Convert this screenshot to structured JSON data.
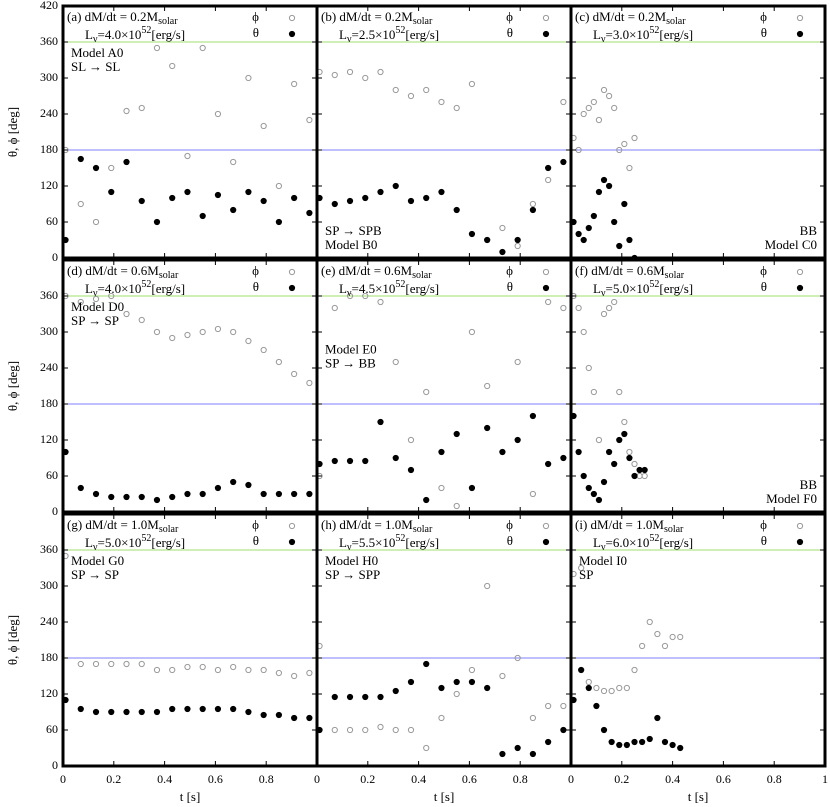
{
  "chart_data": [
    {
      "type": "scatter",
      "title": [
        "(a) dM/dt = 0.2M",
        "solar"
      ],
      "subtitle": [
        "L",
        "ν",
        "=4.0×10",
        "52",
        "[erg/s]"
      ],
      "annotations": [
        "Model A0",
        "SL → SL"
      ],
      "annotation_corner": "top-left",
      "ylabel": "θ, ϕ [deg]",
      "xlim": [
        0,
        1
      ],
      "ylim": [
        0,
        420
      ],
      "xticks": [
        0,
        0.2,
        0.4,
        0.6,
        0.8
      ],
      "yticks": [
        0,
        60,
        120,
        180,
        240,
        300,
        360,
        420
      ],
      "hlines": [
        {
          "value": 180,
          "color": "#7f7fff"
        },
        {
          "value": 360,
          "color": "#9fdf6f"
        }
      ],
      "x": [
        0.01,
        0.07,
        0.13,
        0.19,
        0.25,
        0.31,
        0.37,
        0.43,
        0.49,
        0.55,
        0.61,
        0.67,
        0.73,
        0.79,
        0.85,
        0.91,
        0.97
      ],
      "series": [
        {
          "name": "ϕ",
          "color": "#999999",
          "marker": "open",
          "values": [
            180,
            90,
            60,
            150,
            245,
            250,
            350,
            320,
            170,
            350,
            240,
            160,
            300,
            220,
            120,
            290,
            230
          ]
        },
        {
          "name": "θ",
          "color": "#000000",
          "marker": "filled",
          "values": [
            30,
            165,
            150,
            110,
            160,
            95,
            60,
            100,
            110,
            70,
            105,
            80,
            110,
            95,
            60,
            100,
            75
          ]
        }
      ]
    },
    {
      "type": "scatter",
      "title": [
        "(b) dM/dt = 0.2M",
        "solar"
      ],
      "subtitle": [
        "L",
        "ν",
        "=2.5×10",
        "52",
        "[erg/s]"
      ],
      "annotations": [
        "SP → SPB",
        "Model B0"
      ],
      "annotation_corner": "bottom-left",
      "xlim": [
        0,
        1
      ],
      "ylim": [
        0,
        420
      ],
      "xticks": [
        0,
        0.2,
        0.4,
        0.6,
        0.8
      ],
      "yticks": [
        0,
        60,
        120,
        180,
        240,
        300,
        360,
        420
      ],
      "hlines": [
        {
          "value": 180,
          "color": "#7f7fff"
        },
        {
          "value": 360,
          "color": "#9fdf6f"
        }
      ],
      "x": [
        0.01,
        0.07,
        0.13,
        0.19,
        0.25,
        0.31,
        0.37,
        0.43,
        0.49,
        0.55,
        0.61,
        0.67,
        0.73,
        0.79,
        0.85,
        0.91,
        0.97
      ],
      "series": [
        {
          "name": "ϕ",
          "color": "#999999",
          "marker": "open",
          "values": [
            310,
            305,
            310,
            300,
            310,
            280,
            270,
            280,
            260,
            250,
            290,
            30,
            50,
            20,
            90,
            130,
            260
          ]
        },
        {
          "name": "θ",
          "color": "#000000",
          "marker": "filled",
          "values": [
            100,
            90,
            95,
            100,
            110,
            120,
            95,
            100,
            110,
            80,
            40,
            30,
            10,
            30,
            80,
            150,
            160
          ]
        }
      ]
    },
    {
      "type": "scatter",
      "title": [
        "(c) dM/dt = 0.2M",
        "solar"
      ],
      "subtitle": [
        "L",
        "ν",
        "=3.0×10",
        "52",
        "[erg/s]"
      ],
      "annotations": [
        "BB",
        "Model C0"
      ],
      "annotation_corner": "bottom-right",
      "xlim": [
        0,
        1
      ],
      "ylim": [
        0,
        420
      ],
      "xticks": [
        0,
        0.2,
        0.4,
        0.6,
        0.8,
        1
      ],
      "yticks": [
        0,
        60,
        120,
        180,
        240,
        300,
        360,
        420
      ],
      "hlines": [
        {
          "value": 180,
          "color": "#7f7fff"
        },
        {
          "value": 360,
          "color": "#9fdf6f"
        }
      ],
      "x": [
        0.01,
        0.03,
        0.05,
        0.07,
        0.09,
        0.11,
        0.13,
        0.15,
        0.17,
        0.19,
        0.21,
        0.23,
        0.25
      ],
      "series": [
        {
          "name": "ϕ",
          "color": "#999999",
          "marker": "open",
          "values": [
            200,
            180,
            240,
            250,
            260,
            230,
            280,
            270,
            250,
            180,
            190,
            150,
            200
          ]
        },
        {
          "name": "θ",
          "color": "#000000",
          "marker": "filled",
          "values": [
            60,
            40,
            30,
            50,
            70,
            110,
            130,
            120,
            60,
            20,
            90,
            30,
            0
          ]
        }
      ]
    },
    {
      "type": "scatter",
      "title": [
        "(d) dM/dt = 0.6M",
        "solar"
      ],
      "subtitle": [
        "L",
        "ν",
        "=4.0×10",
        "52",
        "[erg/s]"
      ],
      "annotations": [
        "Model D0",
        "SP → SP"
      ],
      "annotation_corner": "top-left",
      "ylabel": "θ, ϕ [deg]",
      "xlim": [
        0,
        1
      ],
      "ylim": [
        0,
        420
      ],
      "xticks": [
        0,
        0.2,
        0.4,
        0.6,
        0.8
      ],
      "yticks": [
        0,
        60,
        120,
        180,
        240,
        300,
        360
      ],
      "hlines": [
        {
          "value": 180,
          "color": "#7f7fff"
        },
        {
          "value": 360,
          "color": "#9fdf6f"
        }
      ],
      "x": [
        0.01,
        0.07,
        0.13,
        0.19,
        0.25,
        0.31,
        0.37,
        0.43,
        0.49,
        0.55,
        0.61,
        0.67,
        0.73,
        0.79,
        0.85,
        0.91,
        0.97
      ],
      "series": [
        {
          "name": "ϕ",
          "color": "#999999",
          "marker": "open",
          "values": [
            360,
            350,
            355,
            360,
            330,
            320,
            300,
            290,
            295,
            300,
            305,
            300,
            285,
            270,
            250,
            230,
            215
          ]
        },
        {
          "name": "θ",
          "color": "#000000",
          "marker": "filled",
          "values": [
            100,
            40,
            30,
            25,
            25,
            25,
            20,
            25,
            30,
            30,
            40,
            50,
            45,
            30,
            30,
            30,
            30
          ]
        }
      ]
    },
    {
      "type": "scatter",
      "title": [
        "(e) dM/dt = 0.6M",
        "solar"
      ],
      "subtitle": [
        "L",
        "ν",
        "=4.5×10",
        "52",
        "[erg/s]"
      ],
      "annotations": [
        "Model E0",
        "SP → BB"
      ],
      "annotation_corner": "center-left",
      "xlim": [
        0,
        1
      ],
      "ylim": [
        0,
        420
      ],
      "xticks": [
        0,
        0.2,
        0.4,
        0.6,
        0.8
      ],
      "yticks": [
        0,
        60,
        120,
        180,
        240,
        300,
        360
      ],
      "hlines": [
        {
          "value": 180,
          "color": "#7f7fff"
        },
        {
          "value": 360,
          "color": "#9fdf6f"
        }
      ],
      "x": [
        0.01,
        0.07,
        0.13,
        0.19,
        0.25,
        0.31,
        0.37,
        0.43,
        0.49,
        0.55,
        0.61,
        0.67,
        0.73,
        0.79,
        0.85,
        0.91,
        0.97
      ],
      "series": [
        {
          "name": "ϕ",
          "color": "#999999",
          "marker": "open",
          "values": [
            60,
            340,
            360,
            360,
            350,
            250,
            120,
            200,
            40,
            10,
            300,
            210,
            100,
            250,
            30,
            350,
            340
          ]
        },
        {
          "name": "θ",
          "color": "#000000",
          "marker": "filled",
          "values": [
            80,
            85,
            85,
            85,
            150,
            90,
            70,
            20,
            100,
            130,
            40,
            140,
            100,
            120,
            160,
            80,
            90
          ]
        }
      ]
    },
    {
      "type": "scatter",
      "title": [
        "(f) dM/dt = 0.6M",
        "solar"
      ],
      "subtitle": [
        "L",
        "ν",
        "=5.0×10",
        "52",
        "[erg/s]"
      ],
      "annotations": [
        "BB",
        "Model F0"
      ],
      "annotation_corner": "bottom-right",
      "xlim": [
        0,
        1
      ],
      "ylim": [
        0,
        420
      ],
      "xticks": [
        0,
        0.2,
        0.4,
        0.6,
        0.8,
        1
      ],
      "yticks": [
        0,
        60,
        120,
        180,
        240,
        300,
        360
      ],
      "hlines": [
        {
          "value": 180,
          "color": "#7f7fff"
        },
        {
          "value": 360,
          "color": "#9fdf6f"
        }
      ],
      "x": [
        0.01,
        0.03,
        0.05,
        0.07,
        0.09,
        0.11,
        0.13,
        0.15,
        0.17,
        0.19,
        0.21,
        0.23,
        0.25,
        0.27,
        0.29
      ],
      "series": [
        {
          "name": "ϕ",
          "color": "#999999",
          "marker": "open",
          "values": [
            360,
            340,
            300,
            240,
            200,
            120,
            330,
            340,
            350,
            200,
            150,
            100,
            80,
            60,
            60
          ]
        },
        {
          "name": "θ",
          "color": "#000000",
          "marker": "filled",
          "values": [
            160,
            100,
            60,
            40,
            30,
            20,
            50,
            100,
            80,
            120,
            130,
            90,
            60,
            70,
            70
          ]
        }
      ]
    },
    {
      "type": "scatter",
      "title": [
        "(g) dM/dt = 1.0M",
        "solar"
      ],
      "subtitle": [
        "L",
        "ν",
        "=5.0×10",
        "52",
        "[erg/s]"
      ],
      "annotations": [
        "Model G0",
        "SP → SP"
      ],
      "annotation_corner": "top-left",
      "ylabel": "θ, ϕ [deg]",
      "xlabel": "t [s]",
      "xlim": [
        0,
        1
      ],
      "ylim": [
        0,
        420
      ],
      "xticks": [
        0,
        0.2,
        0.4,
        0.6,
        0.8
      ],
      "yticks": [
        0,
        60,
        120,
        180,
        240,
        300,
        360
      ],
      "hlines": [
        {
          "value": 180,
          "color": "#7f7fff"
        },
        {
          "value": 360,
          "color": "#9fdf6f"
        }
      ],
      "x": [
        0.01,
        0.07,
        0.13,
        0.19,
        0.25,
        0.31,
        0.37,
        0.43,
        0.49,
        0.55,
        0.61,
        0.67,
        0.73,
        0.79,
        0.85,
        0.91,
        0.97
      ],
      "series": [
        {
          "name": "ϕ",
          "color": "#999999",
          "marker": "open",
          "values": [
            350,
            170,
            170,
            170,
            170,
            170,
            160,
            160,
            165,
            165,
            160,
            165,
            160,
            160,
            155,
            150,
            155
          ]
        },
        {
          "name": "θ",
          "color": "#000000",
          "marker": "filled",
          "values": [
            110,
            95,
            90,
            90,
            90,
            90,
            90,
            95,
            95,
            95,
            95,
            95,
            90,
            85,
            85,
            80,
            80
          ]
        }
      ]
    },
    {
      "type": "scatter",
      "title": [
        "(h) dM/dt = 1.0M",
        "solar"
      ],
      "subtitle": [
        "L",
        "ν",
        "=5.5×10",
        "52",
        "[erg/s]"
      ],
      "annotations": [
        "Model H0",
        "SP → SPP"
      ],
      "annotation_corner": "top-left",
      "xlabel": "t [s]",
      "xlim": [
        0,
        1
      ],
      "ylim": [
        0,
        420
      ],
      "xticks": [
        0,
        0.2,
        0.4,
        0.6,
        0.8
      ],
      "yticks": [
        0,
        60,
        120,
        180,
        240,
        300,
        360
      ],
      "hlines": [
        {
          "value": 180,
          "color": "#7f7fff"
        },
        {
          "value": 360,
          "color": "#9fdf6f"
        }
      ],
      "x": [
        0.01,
        0.07,
        0.13,
        0.19,
        0.25,
        0.31,
        0.37,
        0.43,
        0.49,
        0.55,
        0.61,
        0.67,
        0.73,
        0.79,
        0.85,
        0.91,
        0.97
      ],
      "series": [
        {
          "name": "ϕ",
          "color": "#999999",
          "marker": "open",
          "values": [
            200,
            60,
            60,
            60,
            65,
            60,
            60,
            30,
            80,
            120,
            160,
            300,
            150,
            180,
            80,
            100,
            100
          ]
        },
        {
          "name": "θ",
          "color": "#000000",
          "marker": "filled",
          "values": [
            60,
            115,
            115,
            115,
            115,
            125,
            140,
            170,
            130,
            140,
            140,
            130,
            20,
            30,
            20,
            40,
            60
          ]
        }
      ]
    },
    {
      "type": "scatter",
      "title": [
        "(i) dM/dt = 1.0M",
        "solar"
      ],
      "subtitle": [
        "L",
        "ν",
        "=6.0×10",
        "52",
        "[erg/s]"
      ],
      "annotations": [
        "Model I0",
        "SP"
      ],
      "annotation_corner": "top-left",
      "xlabel": "t [s]",
      "xlim": [
        0,
        1
      ],
      "ylim": [
        0,
        420
      ],
      "xticks": [
        0,
        0.2,
        0.4,
        0.6,
        0.8,
        1
      ],
      "yticks": [
        0,
        60,
        120,
        180,
        240,
        300,
        360
      ],
      "hlines": [
        {
          "value": 180,
          "color": "#7f7fff"
        },
        {
          "value": 360,
          "color": "#9fdf6f"
        }
      ],
      "x": [
        0.01,
        0.04,
        0.07,
        0.1,
        0.13,
        0.16,
        0.19,
        0.22,
        0.25,
        0.28,
        0.31,
        0.34,
        0.37,
        0.4,
        0.43
      ],
      "series": [
        {
          "name": "ϕ",
          "color": "#999999",
          "marker": "open",
          "values": [
            320,
            330,
            140,
            130,
            125,
            125,
            130,
            130,
            160,
            200,
            240,
            220,
            200,
            215,
            215
          ]
        },
        {
          "name": "θ",
          "color": "#000000",
          "marker": "filled",
          "values": [
            110,
            160,
            130,
            100,
            60,
            40,
            35,
            35,
            40,
            40,
            45,
            80,
            40,
            35,
            30
          ]
        }
      ]
    }
  ]
}
